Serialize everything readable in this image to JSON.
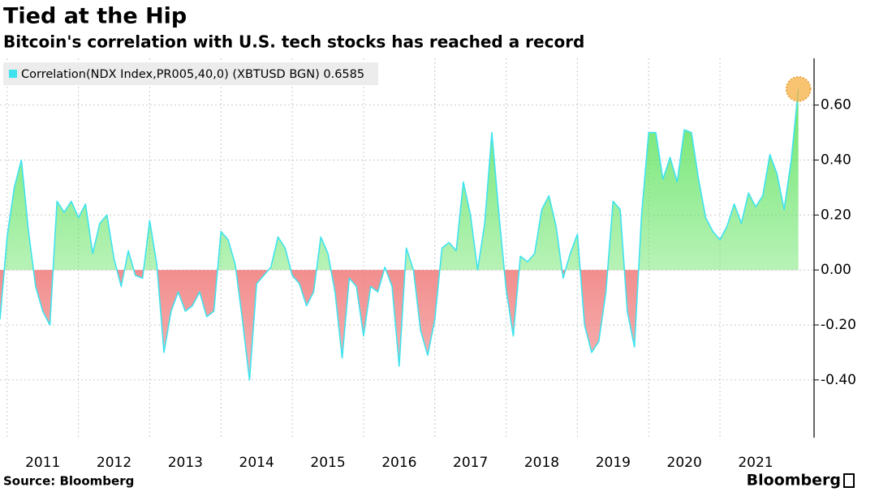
{
  "chart_data": {
    "type": "area",
    "title": "Tied at the Hip",
    "subtitle": "Bitcoin's correlation with U.S. tech stocks has reached a record",
    "source": "Source: Bloomberg",
    "brand": "Bloomberg",
    "x": [
      2010.9,
      2011.0,
      2011.1,
      2011.2,
      2011.3,
      2011.4,
      2011.5,
      2011.6,
      2011.7,
      2011.8,
      2011.9,
      2012.0,
      2012.1,
      2012.2,
      2012.3,
      2012.4,
      2012.5,
      2012.6,
      2012.7,
      2012.8,
      2012.9,
      2013.0,
      2013.1,
      2013.2,
      2013.3,
      2013.4,
      2013.5,
      2013.6,
      2013.7,
      2013.8,
      2013.9,
      2014.0,
      2014.1,
      2014.2,
      2014.3,
      2014.4,
      2014.5,
      2014.6,
      2014.7,
      2014.8,
      2014.9,
      2015.0,
      2015.1,
      2015.2,
      2015.3,
      2015.4,
      2015.5,
      2015.6,
      2015.7,
      2015.8,
      2015.9,
      2016.0,
      2016.1,
      2016.2,
      2016.3,
      2016.4,
      2016.5,
      2016.6,
      2016.7,
      2016.8,
      2016.9,
      2017.0,
      2017.1,
      2017.2,
      2017.3,
      2017.4,
      2017.5,
      2017.6,
      2017.7,
      2017.8,
      2017.9,
      2018.0,
      2018.1,
      2018.2,
      2018.3,
      2018.4,
      2018.5,
      2018.6,
      2018.7,
      2018.8,
      2018.9,
      2019.0,
      2019.1,
      2019.2,
      2019.3,
      2019.4,
      2019.5,
      2019.6,
      2019.7,
      2019.8,
      2019.9,
      2020.0,
      2020.1,
      2020.2,
      2020.3,
      2020.4,
      2020.5,
      2020.6,
      2020.7,
      2020.8,
      2020.9,
      2021.0,
      2021.1,
      2021.2,
      2021.3,
      2021.4,
      2021.5,
      2021.6,
      2021.7,
      2021.8,
      2021.9,
      2022.0,
      2022.1
    ],
    "series": [
      {
        "name": "Correlation(NDX Index,PR005,40,0) (XBTUSD BGN) 0.6585",
        "color": "#3fe3ef",
        "values": [
          -0.18,
          0.12,
          0.3,
          0.4,
          0.14,
          -0.06,
          -0.15,
          -0.2,
          0.25,
          0.21,
          0.25,
          0.19,
          0.24,
          0.06,
          0.17,
          0.2,
          0.04,
          -0.06,
          0.07,
          -0.02,
          -0.03,
          0.18,
          0.02,
          -0.3,
          -0.15,
          -0.08,
          -0.15,
          -0.13,
          -0.08,
          -0.17,
          -0.15,
          0.14,
          0.11,
          0.02,
          -0.18,
          -0.4,
          -0.05,
          -0.02,
          0.01,
          0.12,
          0.08,
          -0.02,
          -0.05,
          -0.13,
          -0.08,
          0.12,
          0.06,
          -0.08,
          -0.32,
          -0.03,
          -0.06,
          -0.24,
          -0.06,
          -0.08,
          0.01,
          -0.06,
          -0.35,
          0.08,
          0.0,
          -0.22,
          -0.31,
          -0.18,
          0.08,
          0.1,
          0.07,
          0.32,
          0.2,
          0.0,
          0.17,
          0.5,
          0.2,
          -0.07,
          -0.24,
          0.05,
          0.03,
          0.06,
          0.22,
          0.27,
          0.16,
          -0.03,
          0.06,
          0.13,
          -0.2,
          -0.3,
          -0.26,
          -0.08,
          0.25,
          0.22,
          -0.15,
          -0.28,
          0.2,
          0.5,
          0.5,
          0.33,
          0.41,
          0.32,
          0.51,
          0.5,
          0.33,
          0.19,
          0.14,
          0.11,
          0.16,
          0.24,
          0.17,
          0.28,
          0.23,
          0.27,
          0.42,
          0.35,
          0.22,
          0.4,
          0.6585
        ]
      }
    ],
    "positive_color": "#5fe35f",
    "negative_color": "#f07a7a",
    "highlight_color": "#f5b041",
    "xlim": [
      2010.9,
      2022.32
    ],
    "xticks": [
      {
        "value": 2011,
        "label": "2011"
      },
      {
        "value": 2012,
        "label": "2012"
      },
      {
        "value": 2013,
        "label": "2013"
      },
      {
        "value": 2014,
        "label": "2014"
      },
      {
        "value": 2015,
        "label": "2015"
      },
      {
        "value": 2016,
        "label": "2016"
      },
      {
        "value": 2017,
        "label": "2017"
      },
      {
        "value": 2018,
        "label": "2018"
      },
      {
        "value": 2019,
        "label": "2019"
      },
      {
        "value": 2020,
        "label": "2020"
      },
      {
        "value": 2021,
        "label": "2021"
      }
    ],
    "ylim": [
      -0.61,
      0.77
    ],
    "yticks": [
      {
        "value": 0.6,
        "label": "0.60"
      },
      {
        "value": 0.4,
        "label": "0.40"
      },
      {
        "value": 0.2,
        "label": "0.20"
      },
      {
        "value": 0,
        "label": "0.00"
      },
      {
        "value": -0.2,
        "label": "-0.20"
      },
      {
        "value": -0.4,
        "label": "-0.40"
      }
    ],
    "grid": true,
    "legend": "top-left"
  }
}
